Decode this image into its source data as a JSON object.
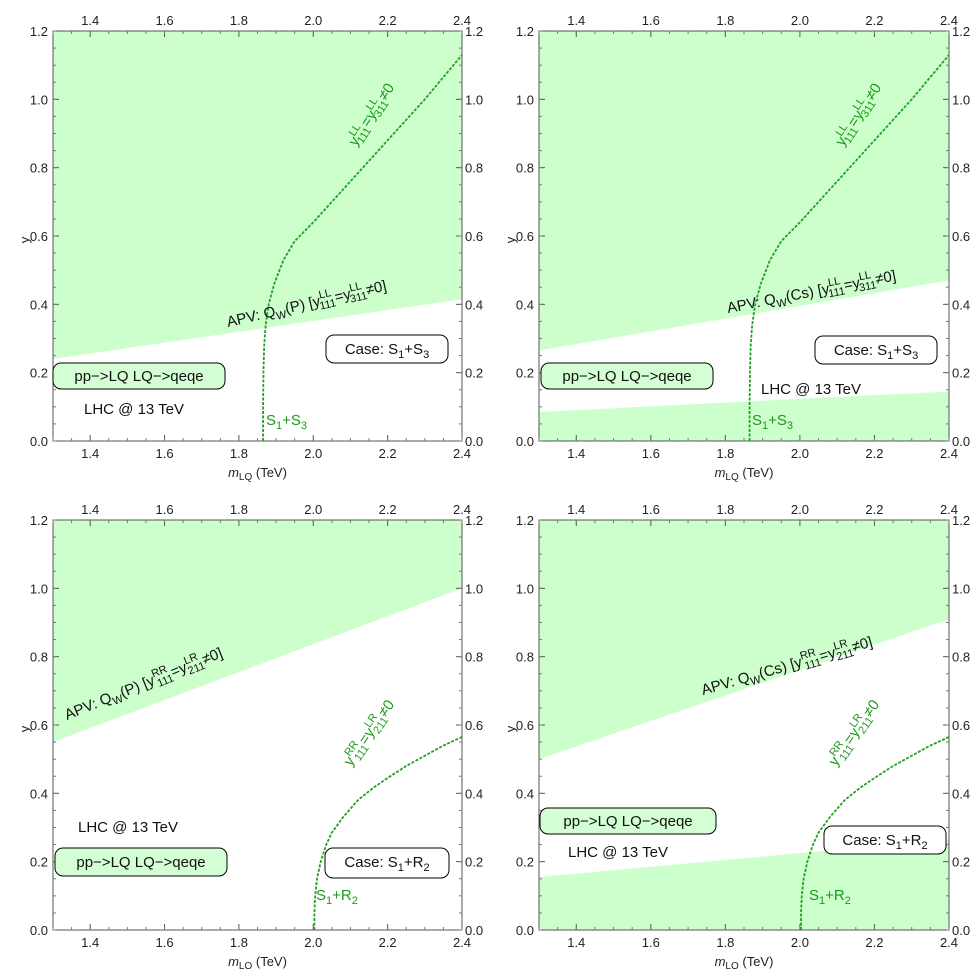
{
  "style": {
    "excluded_fill": "#ccffcc",
    "curve_color": "#22a022",
    "curve_label_color": "#1a9a1a"
  },
  "axes": {
    "xlim": [
      1.3,
      2.4
    ],
    "ylim": [
      0.0,
      1.2
    ],
    "xticks": [
      "1.4",
      "1.6",
      "1.8",
      "2.0",
      "2.2",
      "2.4"
    ],
    "xtick_values": [
      1.4,
      1.6,
      1.8,
      2.0,
      2.2,
      2.4
    ],
    "yticks": [
      "0.0",
      "0.2",
      "0.4",
      "0.6",
      "0.8",
      "1.0",
      "1.2"
    ],
    "ytick_values": [
      0.0,
      0.2,
      0.4,
      0.6,
      0.8,
      1.0,
      1.2
    ],
    "xlabel_main": "m",
    "xlabel_sub": "LQ",
    "xlabel_unit": " (TeV)",
    "ylabel": "y"
  },
  "chart_data": [
    {
      "type": "area",
      "panel": "top-left",
      "ylim": [
        0,
        1.2
      ],
      "xlim": [
        1.3,
        2.4
      ],
      "regions": [
        {
          "label": "APV: Q_W(P) [y^LL_111=y^LL_311≠0]",
          "x": [
            1.3,
            2.4
          ],
          "y_lower": [
            0.24,
            0.415
          ],
          "y_upper": [
            1.2,
            1.2
          ]
        }
      ],
      "series": [
        {
          "name": "S1+S3",
          "x": [
            1.865,
            1.865,
            1.866,
            1.868,
            1.872,
            1.88,
            1.895,
            1.92,
            1.95,
            2.0,
            2.1,
            2.2,
            2.3,
            2.4
          ],
          "y": [
            0.0,
            0.1,
            0.2,
            0.28,
            0.34,
            0.4,
            0.46,
            0.53,
            0.585,
            0.64,
            0.76,
            0.88,
            1.0,
            1.13
          ]
        }
      ],
      "labels": {
        "apv": {
          "pre": "APV: Q",
          "sub": "W",
          "mid": "(P) [y",
          "sup1": "LL",
          "sub1": "111",
          "eq": "=y",
          "sup2": "LL",
          "sub2": "311",
          "end": "≠0]"
        },
        "case": {
          "pre": "Case: S",
          "s1": "1",
          "mid": "+S",
          "s2": "3"
        },
        "process": "pp−>LQ LQ−>qeqe",
        "lhc": "LHC @ 13 TeV",
        "curve": {
          "pre": "S",
          "s1": "1",
          "mid": "+S",
          "s2": "3"
        },
        "yy": {
          "pre": "y",
          "sup1": "LL",
          "sub1": "111",
          "eq": "=y",
          "sup2": "LL",
          "sub2": "311",
          "end": "≠0"
        }
      }
    },
    {
      "type": "area",
      "panel": "top-right",
      "ylim": [
        0,
        1.2
      ],
      "xlim": [
        1.3,
        2.4
      ],
      "regions": [
        {
          "label": "APV: Q_W(Cs) [y^LL_111=y^LL_311≠0]",
          "x": [
            1.3,
            2.4
          ],
          "y_lower": [
            0.265,
            0.47
          ],
          "y_upper": [
            1.2,
            1.2
          ]
        },
        {
          "label": "LHC @ 13 TeV pp−>LQ LQ−>qeqe",
          "x": [
            1.3,
            2.4
          ],
          "y_lower": [
            0.0,
            0.0
          ],
          "y_upper": [
            0.085,
            0.145
          ]
        }
      ],
      "series": [
        {
          "name": "S1+S3",
          "x": [
            1.865,
            1.865,
            1.866,
            1.868,
            1.872,
            1.88,
            1.895,
            1.92,
            1.95,
            2.0,
            2.1,
            2.2,
            2.3,
            2.4
          ],
          "y": [
            0.0,
            0.1,
            0.2,
            0.28,
            0.34,
            0.4,
            0.46,
            0.53,
            0.585,
            0.64,
            0.76,
            0.88,
            1.0,
            1.13
          ]
        }
      ],
      "labels": {
        "apv": {
          "pre": "APV: Q",
          "sub": "W",
          "mid": "(Cs) [y",
          "sup1": "LL",
          "sub1": "111",
          "eq": "=y",
          "sup2": "LL",
          "sub2": "311",
          "end": "≠0]"
        },
        "case": {
          "pre": "Case: S",
          "s1": "1",
          "mid": "+S",
          "s2": "3"
        },
        "process": "pp−>LQ LQ−>qeqe",
        "lhc": "LHC @ 13 TeV",
        "curve": {
          "pre": "S",
          "s1": "1",
          "mid": "+S",
          "s2": "3"
        },
        "yy": {
          "pre": "y",
          "sup1": "LL",
          "sub1": "111",
          "eq": "=y",
          "sup2": "LL",
          "sub2": "311",
          "end": "≠0"
        }
      }
    },
    {
      "type": "area",
      "panel": "bottom-left",
      "ylim": [
        0,
        1.2
      ],
      "xlim": [
        1.3,
        2.4
      ],
      "regions": [
        {
          "label": "APV: Q_W(P) [y^RR_111=y^LR_211≠0]",
          "x": [
            1.3,
            2.4
          ],
          "y_lower": [
            0.55,
            1.0
          ],
          "y_upper": [
            1.2,
            1.2
          ]
        }
      ],
      "series": [
        {
          "name": "S1+R2",
          "x": [
            2.003,
            2.003,
            2.005,
            2.01,
            2.02,
            2.035,
            2.05,
            2.08,
            2.12,
            2.16,
            2.2,
            2.25,
            2.3,
            2.35,
            2.4
          ],
          "y": [
            0.0,
            0.05,
            0.1,
            0.15,
            0.2,
            0.25,
            0.285,
            0.33,
            0.38,
            0.415,
            0.445,
            0.48,
            0.51,
            0.54,
            0.565
          ]
        }
      ],
      "labels": {
        "apv": {
          "pre": "APV: Q",
          "sub": "W",
          "mid": "(P) [y",
          "sup1": "RR",
          "sub1": "111",
          "eq": "=y",
          "sup2": "LR",
          "sub2": "211",
          "end": "≠0]"
        },
        "case": {
          "pre": "Case: S",
          "s1": "1",
          "mid": "+R",
          "s2": "2"
        },
        "process": "pp−>LQ LQ−>qeqe",
        "lhc": "LHC @ 13 TeV",
        "curve": {
          "pre": "S",
          "s1": "1",
          "mid": "+R",
          "s2": "2"
        },
        "yy": {
          "pre": "y",
          "sup1": "RR",
          "sub1": "111",
          "eq": "=y",
          "sup2": "LR",
          "sub2": "211",
          "end": "≠0"
        }
      }
    },
    {
      "type": "area",
      "panel": "bottom-right",
      "ylim": [
        0,
        1.2
      ],
      "xlim": [
        1.3,
        2.4
      ],
      "regions": [
        {
          "label": "APV: Q_W(Cs) [y^RR_111=y^LR_211≠0]",
          "x": [
            1.3,
            2.4
          ],
          "y_lower": [
            0.5,
            0.91
          ],
          "y_upper": [
            1.2,
            1.2
          ]
        },
        {
          "label": "LHC @ 13 TeV pp−>LQ LQ−>qeqe",
          "x": [
            1.3,
            2.4
          ],
          "y_lower": [
            0.0,
            0.0
          ],
          "y_upper": [
            0.155,
            0.265
          ]
        }
      ],
      "series": [
        {
          "name": "S1+R2",
          "x": [
            2.003,
            2.003,
            2.005,
            2.01,
            2.02,
            2.035,
            2.05,
            2.08,
            2.12,
            2.16,
            2.2,
            2.25,
            2.3,
            2.35,
            2.4
          ],
          "y": [
            0.0,
            0.05,
            0.1,
            0.15,
            0.2,
            0.25,
            0.285,
            0.33,
            0.38,
            0.415,
            0.445,
            0.48,
            0.51,
            0.54,
            0.565
          ]
        }
      ],
      "labels": {
        "apv": {
          "pre": "APV: Q",
          "sub": "W",
          "mid": "(Cs) [y",
          "sup1": "RR",
          "sub1": "111",
          "eq": "=y",
          "sup2": "LR",
          "sub2": "211",
          "end": "≠0]"
        },
        "case": {
          "pre": "Case: S",
          "s1": "1",
          "mid": "+R",
          "s2": "2"
        },
        "process": "pp−>LQ LQ−>qeqe",
        "lhc": "LHC @ 13 TeV",
        "curve": {
          "pre": "S",
          "s1": "1",
          "mid": "+R",
          "s2": "2"
        },
        "yy": {
          "pre": "y",
          "sup1": "RR",
          "sub1": "111",
          "eq": "=y",
          "sup2": "LR",
          "sub2": "211",
          "end": "≠0"
        }
      }
    }
  ]
}
